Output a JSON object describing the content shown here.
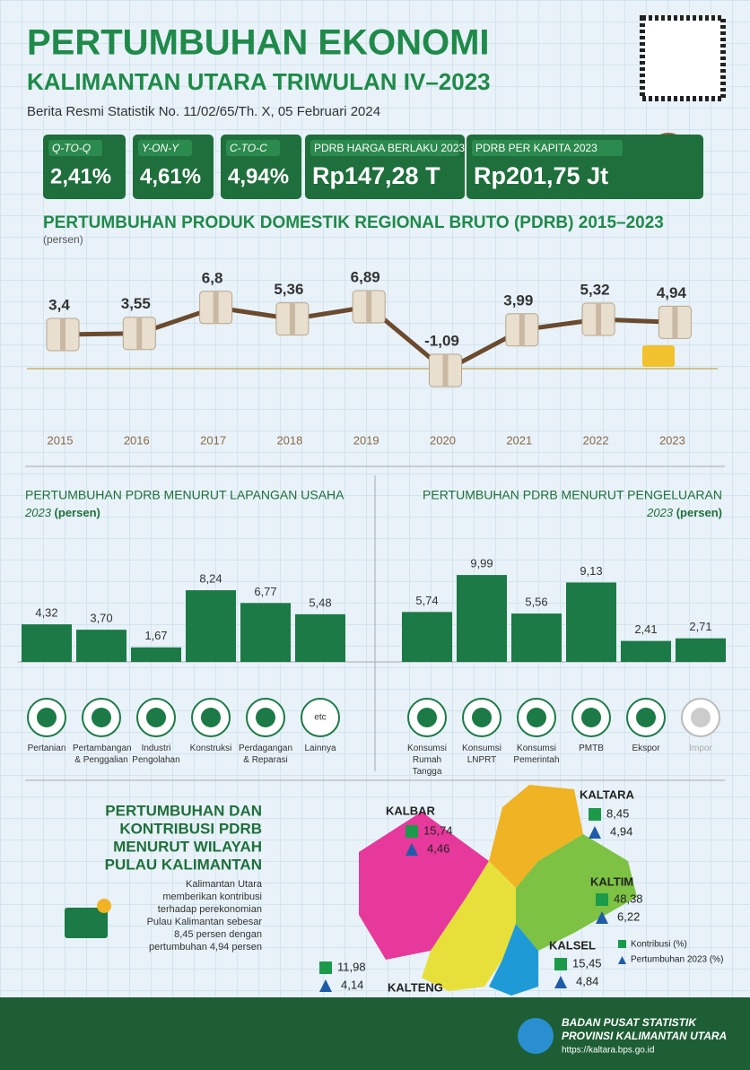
{
  "header": {
    "title": "PERTUMBUHAN EKONOMI",
    "subtitle": "KALIMANTAN UTARA TRIWULAN IV–2023",
    "source": "Berita Resmi Statistik No. 11/02/65/Th. X, 05 Februari 2024"
  },
  "stats": [
    {
      "label": "Q-TO-Q",
      "value": "2,41%"
    },
    {
      "label": "Y-ON-Y",
      "value": "4,61%"
    },
    {
      "label": "C-TO-C",
      "value": "4,94%"
    },
    {
      "label": "PDRB HARGA BERLAKU 2023",
      "value": "Rp147,28 T"
    },
    {
      "label": "PDRB PER KAPITA 2023",
      "value": "Rp201,75 Jt"
    }
  ],
  "chart_data": [
    {
      "type": "line",
      "title": "PERTUMBUHAN PRODUK DOMESTIK REGIONAL BRUTO (PDRB) 2015–2023",
      "subtitle": "(persen)",
      "categories": [
        "2015",
        "2016",
        "2017",
        "2018",
        "2019",
        "2020",
        "2021",
        "2022",
        "2023"
      ],
      "values": [
        3.4,
        3.55,
        6.8,
        5.36,
        6.89,
        -1.09,
        3.99,
        5.32,
        4.94
      ],
      "value_labels": [
        "3,4",
        "3,55",
        "6,8",
        "5,36",
        "6,89",
        "-1,09",
        "3,99",
        "5,32",
        "4,94"
      ],
      "color": "#6b4a2e"
    },
    {
      "type": "bar",
      "title": "PERTUMBUHAN PDRB MENURUT LAPANGAN USAHA",
      "subtitle": [
        "2023",
        "(persen)"
      ],
      "categories": [
        "Pertanian",
        "Pertambangan & Penggalian",
        "Industri Pengolahan",
        "Konstruksi",
        "Perdagangan & Reparasi",
        "Lainnya"
      ],
      "values": [
        4.32,
        3.7,
        1.67,
        8.24,
        6.77,
        5.48
      ],
      "value_labels": [
        "4,32",
        "3,70",
        "1,67",
        "8,24",
        "6,77",
        "5,48"
      ],
      "color": "#1b7a45"
    },
    {
      "type": "bar",
      "title": "PERTUMBUHAN PDRB MENURUT PENGELUARAN",
      "subtitle": [
        "2023",
        "(persen)"
      ],
      "categories": [
        "Konsumsi Rumah Tangga",
        "Konsumsi LNPRT",
        "Konsumsi Pemerintah",
        "PMTB",
        "Ekspor",
        "Impor"
      ],
      "values": [
        5.74,
        9.99,
        5.56,
        9.13,
        2.41,
        2.71
      ],
      "value_labels": [
        "5,74",
        "9,99",
        "5,56",
        "9,13",
        "2,41",
        "2,71"
      ],
      "color": "#1b7a45"
    }
  ],
  "icon_text": "etc",
  "region_section": {
    "title": [
      "PERTUMBUHAN DAN",
      "KONTRIBUSI PDRB",
      "MENURUT WILAYAH",
      "PULAU KALIMANTAN"
    ],
    "description": [
      "Kalimantan Utara",
      "memberikan kontribusi",
      "terhadap perekonomian",
      "Pulau Kalimantan sebesar",
      "8,45 persen dengan",
      "pertumbuhan 4,94 persen"
    ],
    "legend": [
      "Kontribusi (%)",
      "Pertumbuhan 2023 (%)"
    ],
    "regions": [
      {
        "name": "KALBAR",
        "contribution": "15,74",
        "growth": "4,46"
      },
      {
        "name": "KALTARA",
        "contribution": "8,45",
        "growth": "4,94"
      },
      {
        "name": "KALTIM",
        "contribution": "48,38",
        "growth": "6,22"
      },
      {
        "name": "KALSEL",
        "contribution": "15,45",
        "growth": "4,84"
      },
      {
        "name": "KALTENG",
        "contribution": "11,98",
        "growth": "4,14"
      }
    ]
  },
  "footer": {
    "org": "BADAN PUSAT STATISTIK",
    "province": "PROVINSI KALIMANTAN UTARA",
    "url": "https://kaltara.bps.go.id"
  }
}
